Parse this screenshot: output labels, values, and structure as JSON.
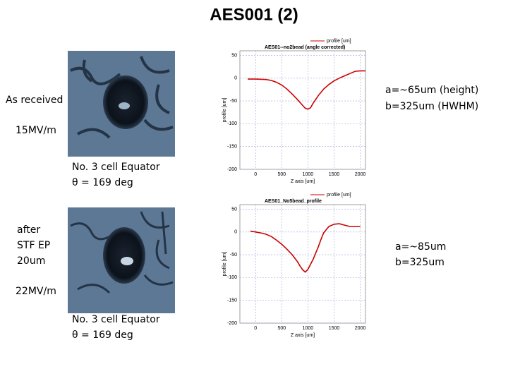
{
  "title": "AES001  (2)",
  "panels": [
    {
      "condition": [
        "As received"
      ],
      "field": "15MV/m",
      "location": [
        "No. 3 cell Equator",
        "θ = 169 deg"
      ],
      "result": [
        "a=~65um (height)",
        "b=325um (HWHM)"
      ]
    },
    {
      "condition": [
        "after",
        "STF EP",
        "20um"
      ],
      "field": "22MV/m",
      "location": [
        "No. 3 cell Equator",
        "θ = 169 deg"
      ],
      "result": [
        "a=~85um",
        "b=325um"
      ]
    }
  ],
  "chart_data": [
    {
      "type": "line",
      "title": "AES01--no2bead (angle corrected)",
      "x_label": "Z axis [um]",
      "y_label": "profile [um]",
      "x": [
        -150,
        0,
        200,
        300,
        400,
        500,
        600,
        700,
        800,
        900,
        950,
        1000,
        1050,
        1100,
        1200,
        1300,
        1400,
        1500,
        1600,
        1700,
        1800,
        1900,
        2000,
        2100
      ],
      "series": [
        {
          "name": "profile [um]",
          "color": "#cc0000",
          "values": [
            -2,
            -2,
            -3,
            -5,
            -9,
            -15,
            -24,
            -35,
            -47,
            -60,
            -66,
            -68,
            -65,
            -55,
            -38,
            -24,
            -14,
            -6,
            0,
            5,
            10,
            15,
            16,
            16
          ]
        }
      ],
      "xlim": [
        -300,
        2100
      ],
      "ylim": [
        -200,
        60
      ],
      "xticks": [
        0,
        500,
        1000,
        1500,
        2000
      ],
      "yticks": [
        50,
        0,
        -50,
        -100,
        -150,
        -200
      ],
      "grid": true
    },
    {
      "type": "line",
      "title": "AES01_No5bead_profile",
      "x_label": "Z axis [um]",
      "y_label": "profile [um]",
      "x": [
        -100,
        0,
        100,
        200,
        300,
        400,
        500,
        600,
        700,
        800,
        850,
        900,
        950,
        1000,
        1100,
        1200,
        1250,
        1300,
        1400,
        1500,
        1600,
        1700,
        1800,
        1900,
        2000
      ],
      "series": [
        {
          "name": "profile [um]",
          "color": "#cc0000",
          "values": [
            2,
            0,
            -2,
            -5,
            -10,
            -18,
            -27,
            -38,
            -50,
            -65,
            -75,
            -83,
            -88,
            -82,
            -60,
            -32,
            -16,
            -2,
            12,
            17,
            18,
            15,
            12,
            12,
            12
          ]
        }
      ],
      "xlim": [
        -300,
        2100
      ],
      "ylim": [
        -200,
        60
      ],
      "xticks": [
        0,
        500,
        1000,
        1500,
        2000
      ],
      "yticks": [
        50,
        0,
        -50,
        -100,
        -150,
        -200
      ],
      "grid": true
    }
  ]
}
